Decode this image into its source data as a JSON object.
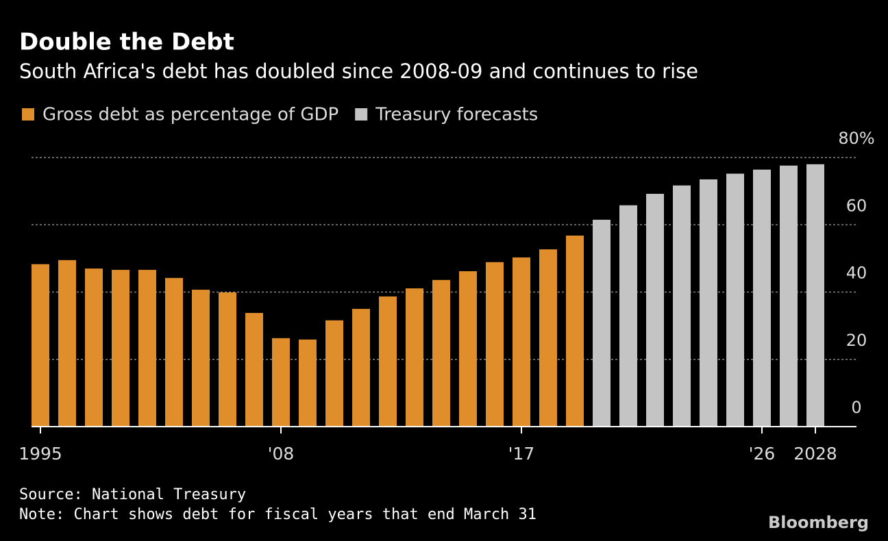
{
  "chart_data": {
    "type": "bar",
    "title": "Double the Debt",
    "subtitle": "South Africa's debt has doubled since 2008-09 and continues to rise",
    "categories": [
      "1995",
      null,
      null,
      null,
      null,
      null,
      null,
      null,
      null,
      "'08",
      null,
      null,
      null,
      null,
      null,
      null,
      null,
      null,
      "'17",
      null,
      null,
      null,
      null,
      null,
      null,
      null,
      null,
      "'26",
      null,
      "2028"
    ],
    "series": [
      {
        "name": "Gross debt as percentage of GDP",
        "color": "#e08e2b",
        "values": [
          48.3,
          49.5,
          47.0,
          46.6,
          46.6,
          44.2,
          40.7,
          39.9,
          33.8,
          26.3,
          25.9,
          31.6,
          35.0,
          38.7,
          41.1,
          43.6,
          46.2,
          48.9,
          50.3,
          52.7,
          56.8,
          null,
          null,
          null,
          null,
          null,
          null,
          null,
          null,
          null
        ]
      },
      {
        "name": "Treasury forecasts",
        "color": "#c4c4c4",
        "values": [
          null,
          null,
          null,
          null,
          null,
          null,
          null,
          null,
          null,
          null,
          null,
          null,
          null,
          null,
          null,
          null,
          null,
          null,
          null,
          null,
          null,
          61.5,
          65.8,
          69.2,
          71.7,
          73.5,
          75.2,
          76.4,
          77.6,
          78.0
        ]
      }
    ],
    "ylim": [
      0,
      80
    ],
    "yticks": [
      0,
      20,
      40,
      60,
      {
        "value": 80,
        "label": "80%"
      }
    ],
    "grid": true,
    "source": "Source: National Treasury",
    "note": "Note: Chart shows debt for fiscal years that end March 31",
    "brand": "Bloomberg"
  }
}
